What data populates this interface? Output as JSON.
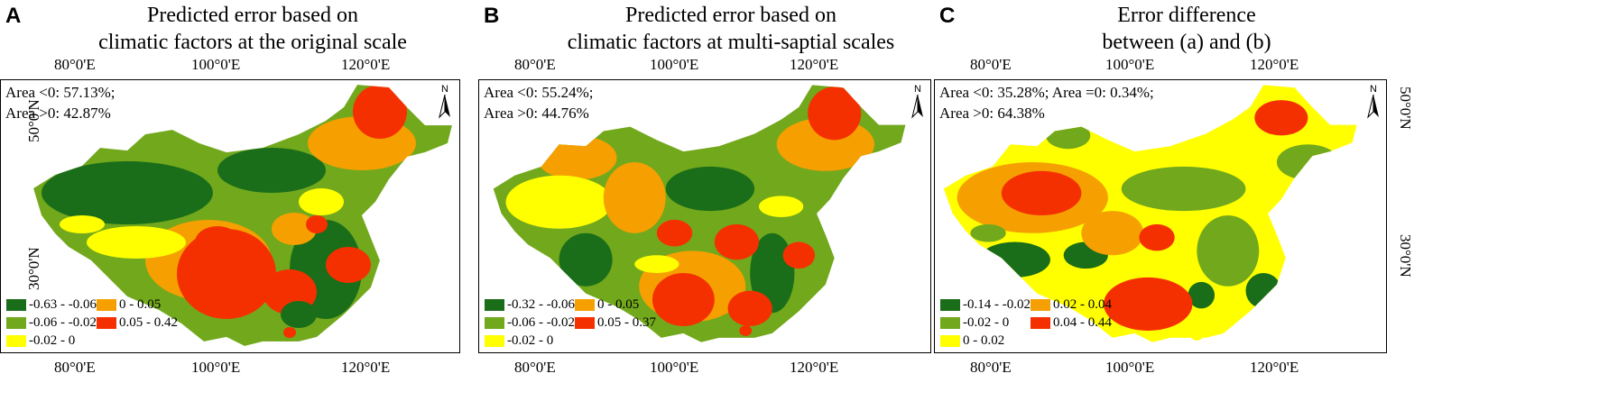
{
  "panels": [
    {
      "letter": "A",
      "title_line1": "Predicted error based on",
      "title_line2": "climatic factors at the original scale",
      "area_line1": "Area <0: 57.13%;",
      "area_line2": "Area >0: 42.87%",
      "legend": [
        {
          "label": "-0.63 - -0.06",
          "color": "#1a6e1a"
        },
        {
          "label": "0 - 0.05",
          "color": "#f5a000"
        },
        {
          "label": "-0.06 - -0.02",
          "color": "#72a81c"
        },
        {
          "label": "0.05 - 0.42",
          "color": "#f53000"
        },
        {
          "label": "-0.02 - 0",
          "color": "#ffff00"
        }
      ]
    },
    {
      "letter": "B",
      "title_line1": "Predicted error based on",
      "title_line2": "climatic factors at multi-saptial scales",
      "area_line1": "Area <0: 55.24%;",
      "area_line2": "Area >0: 44.76%",
      "legend": [
        {
          "label": "-0.32 - -0.06",
          "color": "#1a6e1a"
        },
        {
          "label": "0 - 0.05",
          "color": "#f5a000"
        },
        {
          "label": "-0.06 - -0.02",
          "color": "#72a81c"
        },
        {
          "label": "0.05 - 0.37",
          "color": "#f53000"
        },
        {
          "label": "-0.02 - 0",
          "color": "#ffff00"
        }
      ]
    },
    {
      "letter": "C",
      "title_line1": "Error difference",
      "title_line2": "between (a) and (b)",
      "area_line1": "Area <0: 35.28%; Area =0: 0.34%;",
      "area_line2": "Area >0: 64.38%",
      "legend": [
        {
          "label": "-0.14 - -0.02",
          "color": "#1a6e1a"
        },
        {
          "label": "0.02 - 0.04",
          "color": "#f5a000"
        },
        {
          "label": "-0.02 - 0",
          "color": "#72a81c"
        },
        {
          "label": "0.04 - 0.44",
          "color": "#f53000"
        },
        {
          "label": "0 - 0.02",
          "color": "#ffff00"
        }
      ]
    }
  ],
  "axes": {
    "lon_80": "80°0'E",
    "lon_100": "100°0'E",
    "lon_120": "120°0'E",
    "lat_50": "50°0'N",
    "lat_30": "30°0'N"
  },
  "north_label": "N"
}
